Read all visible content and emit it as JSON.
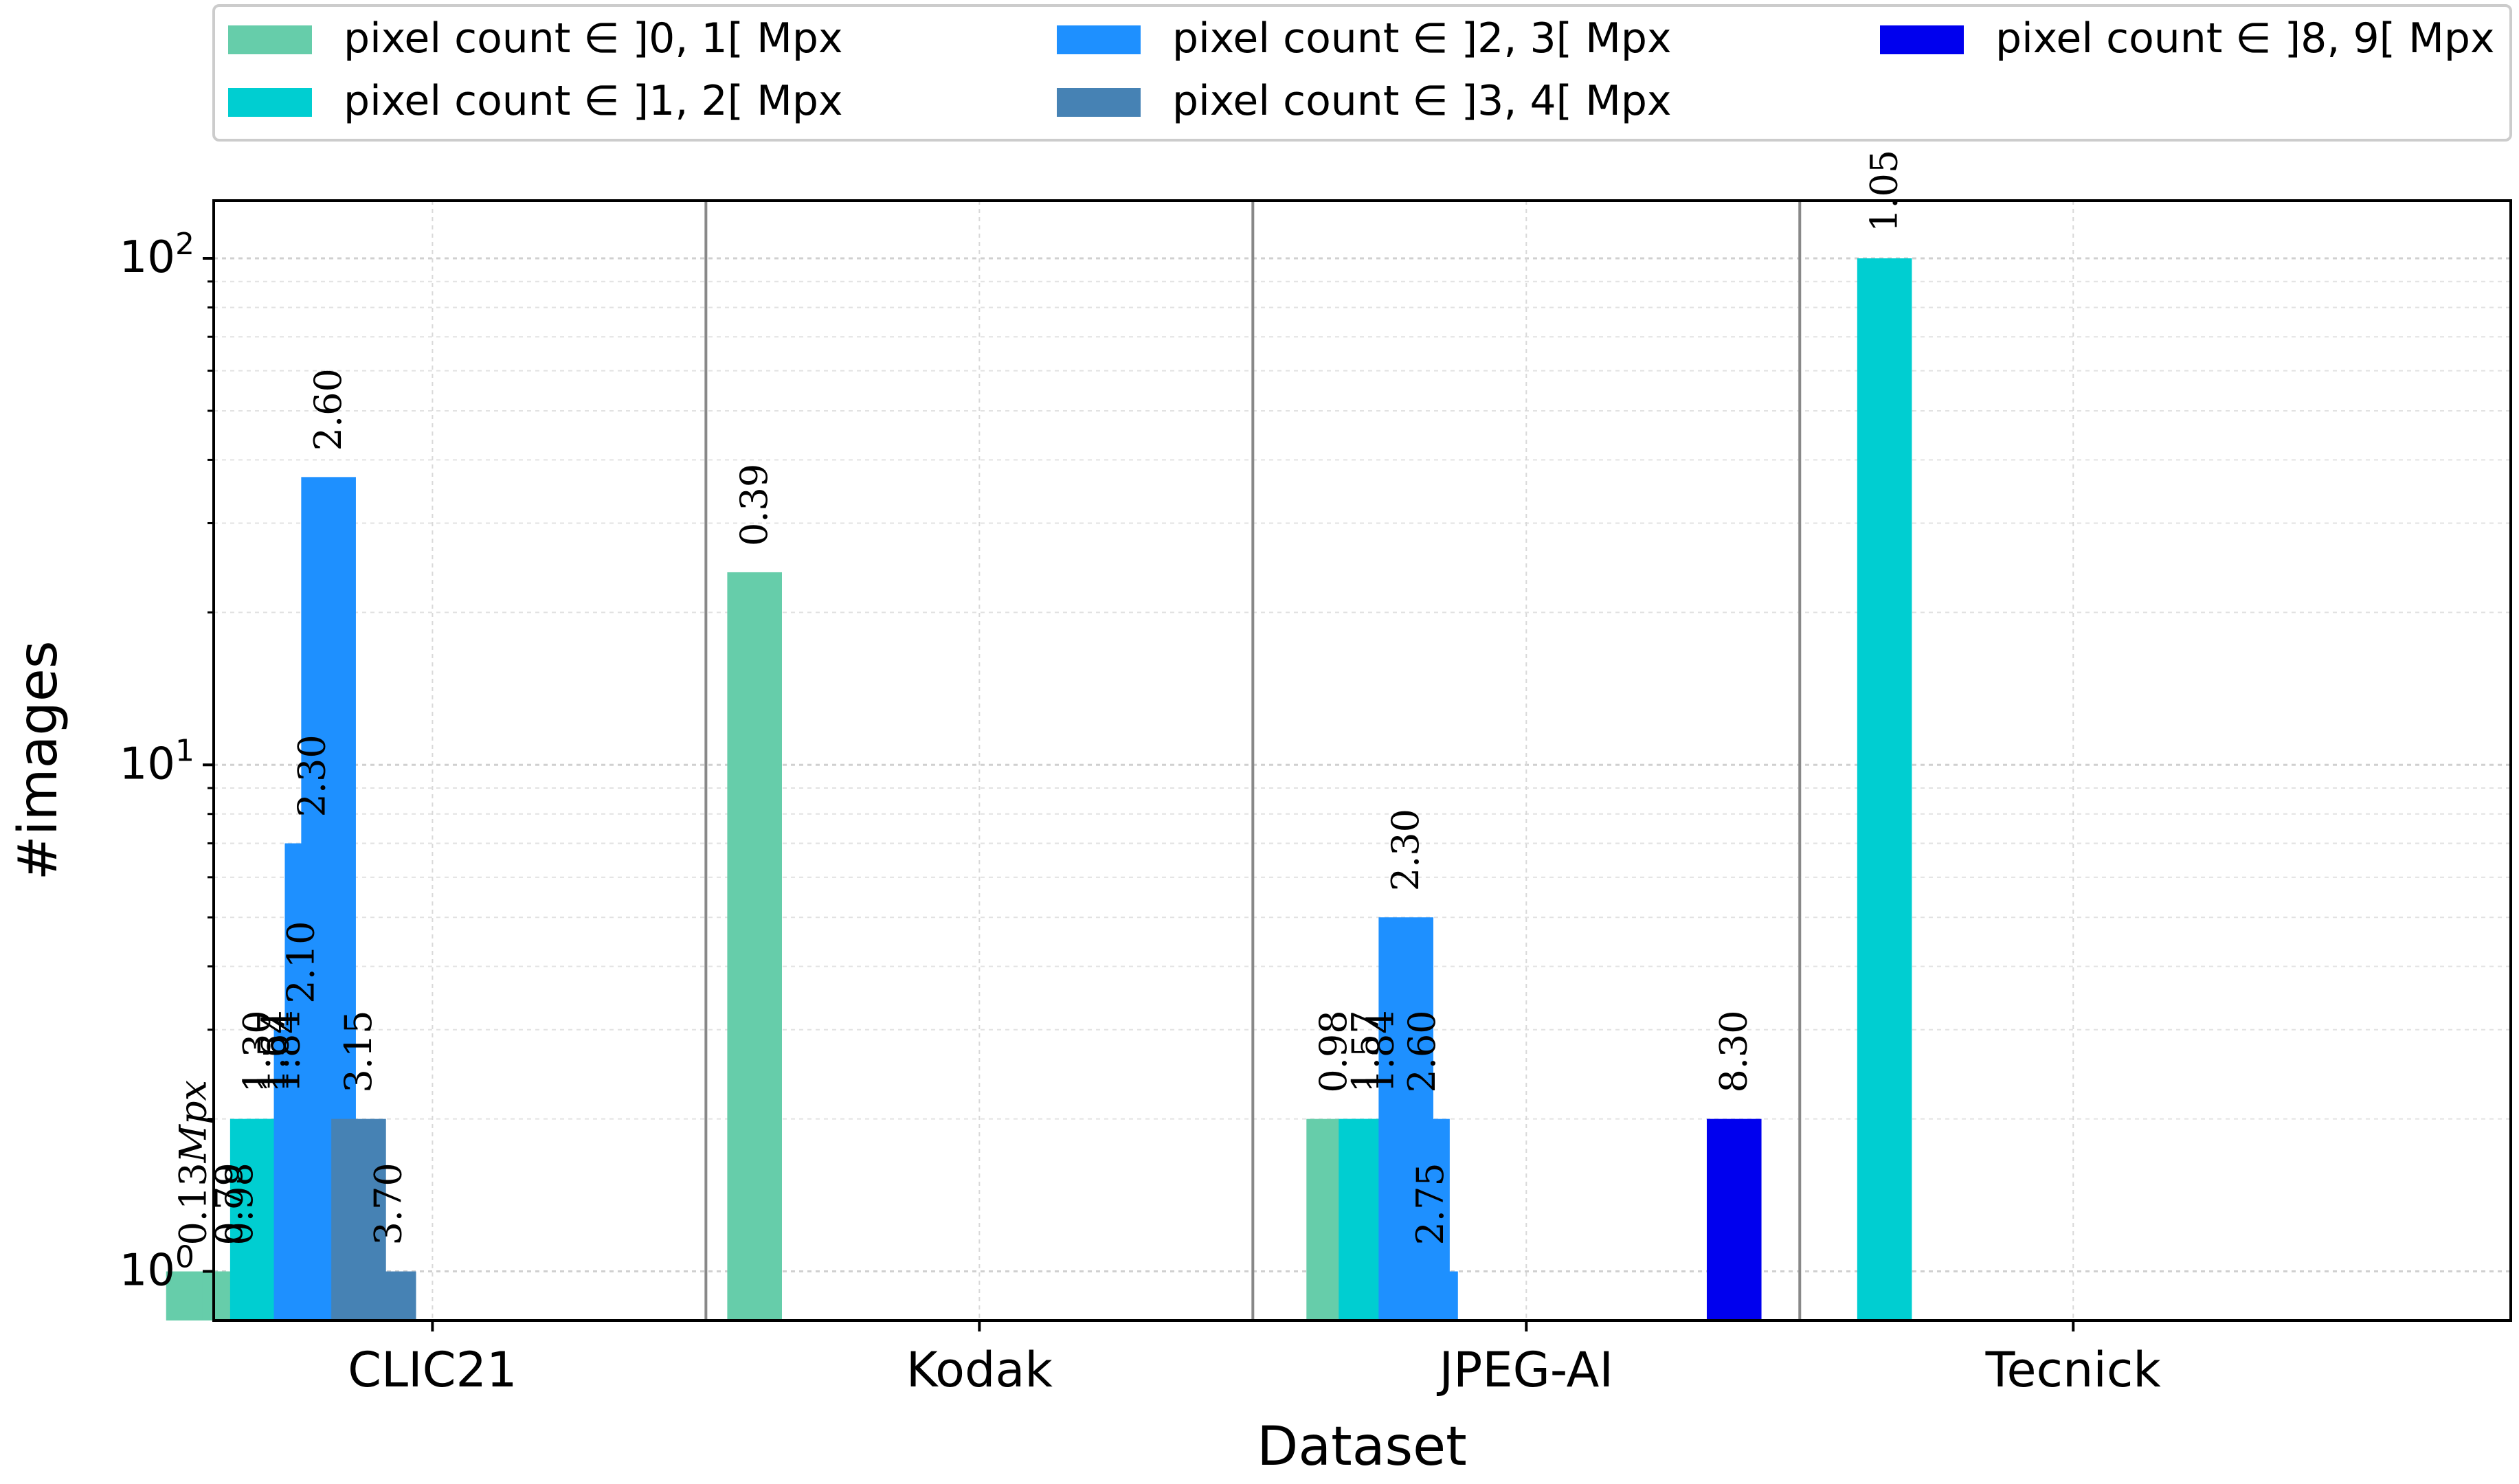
{
  "chart_data": {
    "type": "bar",
    "xlabel": "Dataset",
    "ylabel": "#images",
    "y_scale": "log",
    "ylim": [
      0.8,
      130
    ],
    "grid": true,
    "legend_position": "top",
    "categories": [
      "CLIC21",
      "Kodak",
      "JPEG-AI",
      "Tecnick"
    ],
    "y_tick_labels": [
      {
        "value": 1,
        "base": "10",
        "exp": "0"
      },
      {
        "value": 10,
        "base": "10",
        "exp": "1"
      },
      {
        "value": 100,
        "base": "10",
        "exp": "2"
      }
    ],
    "legend": [
      {
        "label": "pixel count ∈ ]0, 1[ Mpx",
        "color": "#66cdaa"
      },
      {
        "label": "pixel count ∈ ]1, 2[ Mpx",
        "color": "#00ced1"
      },
      {
        "label": "pixel count ∈ ]2, 3[ Mpx",
        "color": "#1e90ff"
      },
      {
        "label": "pixel count ∈ ]3, 4[ Mpx",
        "color": "#4682b4"
      },
      {
        "label": "pixel count ∈ ]8, 9[ Mpx",
        "color": "#0000ee"
      }
    ],
    "bars": [
      {
        "dataset": "CLIC21",
        "mpx": 0.13,
        "count": 1,
        "bin": 0,
        "label": "0.13"
      },
      {
        "dataset": "CLIC21",
        "mpx": 0.79,
        "count": 1,
        "bin": 0,
        "label": "0.79"
      },
      {
        "dataset": "CLIC21",
        "mpx": 0.98,
        "count": 1,
        "bin": 0,
        "label": "0.98"
      },
      {
        "dataset": "CLIC21",
        "mpx": 1.3,
        "count": 2,
        "bin": 1,
        "label": "1.30"
      },
      {
        "dataset": "CLIC21",
        "mpx": 1.57,
        "count": 2,
        "bin": 1,
        "label": "1.57"
      },
      {
        "dataset": "CLIC21",
        "mpx": 1.64,
        "count": 2,
        "bin": 1,
        "label": "1.64"
      },
      {
        "dataset": "CLIC21",
        "mpx": 1.84,
        "count": 2,
        "bin": 1,
        "label": "1.84"
      },
      {
        "dataset": "CLIC21",
        "mpx": 2.1,
        "count": 3,
        "bin": 2,
        "label": "2.10"
      },
      {
        "dataset": "CLIC21",
        "mpx": 2.3,
        "count": 7,
        "bin": 2,
        "label": "2.30"
      },
      {
        "dataset": "CLIC21",
        "mpx": 2.6,
        "count": 37,
        "bin": 2,
        "label": "2.60"
      },
      {
        "dataset": "CLIC21",
        "mpx": 3.15,
        "count": 2,
        "bin": 3,
        "label": "3.15"
      },
      {
        "dataset": "CLIC21",
        "mpx": 3.7,
        "count": 1,
        "bin": 3,
        "label": "3.70"
      },
      {
        "dataset": "Kodak",
        "mpx": 0.39,
        "count": 24,
        "bin": 0,
        "label": "0.39"
      },
      {
        "dataset": "JPEG-AI",
        "mpx": 0.98,
        "count": 2,
        "bin": 0,
        "label": "0.98"
      },
      {
        "dataset": "JPEG-AI",
        "mpx": 1.57,
        "count": 2,
        "bin": 1,
        "label": "1.57"
      },
      {
        "dataset": "JPEG-AI",
        "mpx": 1.84,
        "count": 2,
        "bin": 1,
        "label": "1.84"
      },
      {
        "dataset": "JPEG-AI",
        "mpx": 2.3,
        "count": 5,
        "bin": 2,
        "label": "2.30"
      },
      {
        "dataset": "JPEG-AI",
        "mpx": 2.6,
        "count": 2,
        "bin": 2,
        "label": "2.60"
      },
      {
        "dataset": "JPEG-AI",
        "mpx": 2.75,
        "count": 1,
        "bin": 2,
        "label": "2.75"
      },
      {
        "dataset": "JPEG-AI",
        "mpx": 8.3,
        "count": 2,
        "bin": 4,
        "label": "8.30"
      },
      {
        "dataset": "Tecnick",
        "mpx": 1.05,
        "count": 100,
        "bin": 1,
        "label": "1.05"
      }
    ],
    "first_label_unit": "Mpx"
  }
}
